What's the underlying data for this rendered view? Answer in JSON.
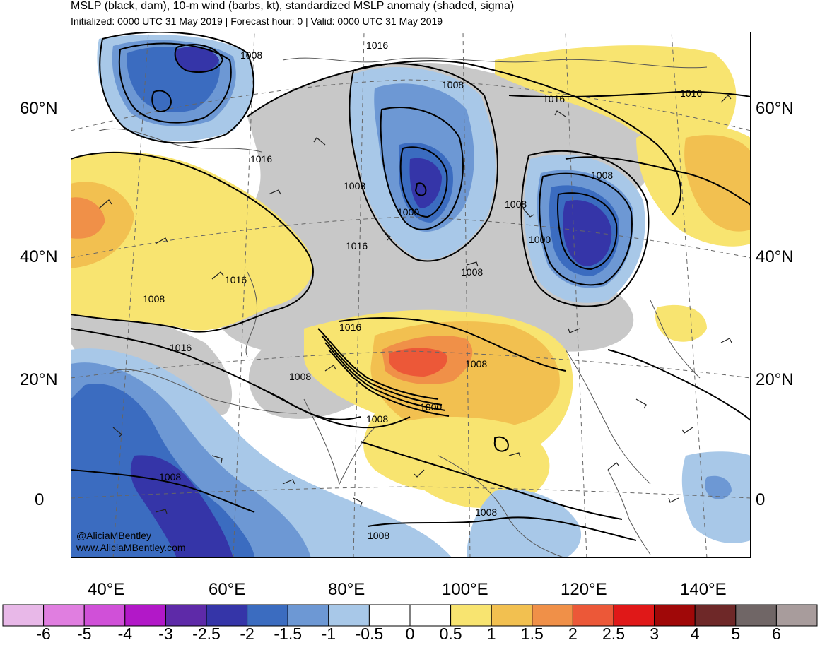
{
  "header": {
    "title": "MSLP (black, dam), 10-m wind (barbs, kt), standardized MSLP anomaly (shaded, sigma)",
    "subtitle": "Initialized: 0000 UTC 31 May 2019 | Forecast hour: 0 | Valid: 0000 UTC 31 May 2019"
  },
  "map": {
    "lat_labels": [
      "60°N",
      "40°N",
      "20°N",
      "0"
    ],
    "lon_labels": [
      "40°E",
      "60°E",
      "80°E",
      "100°E",
      "120°E",
      "140°E"
    ],
    "isobar_labels": [
      "1008",
      "1016",
      "1008",
      "1016",
      "1016",
      "1008",
      "1000",
      "1008",
      "1008",
      "1000",
      "1008",
      "1016",
      "1016",
      "1016",
      "1008",
      "1016",
      "1008",
      "1016",
      "1008",
      "1000",
      "1008",
      "1008",
      "1008",
      "1008"
    ],
    "credit_handle": "@AliciaMBentley",
    "credit_site": "www.AliciaMBentley.com",
    "colors": {
      "land_outline": "#555555",
      "graticule": "#666666",
      "isobar": "#000000",
      "wind_barb": "#222222",
      "neutral_grey": "#c8c8c8"
    }
  },
  "colorbar": {
    "labels": [
      "-6",
      "-5",
      "-4",
      "-3",
      "-2.5",
      "-2",
      "-1.5",
      "-1",
      "-0.5",
      "0",
      "0.5",
      "1",
      "1.5",
      "2",
      "2.5",
      "3",
      "4",
      "5",
      "6"
    ],
    "colors": [
      "#e8b8e8",
      "#e07ee0",
      "#d050d8",
      "#b218c8",
      "#5e2aa8",
      "#3535a8",
      "#3b6cc0",
      "#6d98d4",
      "#a8c8e8",
      "#ffffff",
      "#ffffff",
      "#f8e470",
      "#f2c050",
      "#f09048",
      "#ec5838",
      "#e01818",
      "#a00808",
      "#6e2828",
      "#706666",
      "#a89c9c"
    ]
  }
}
